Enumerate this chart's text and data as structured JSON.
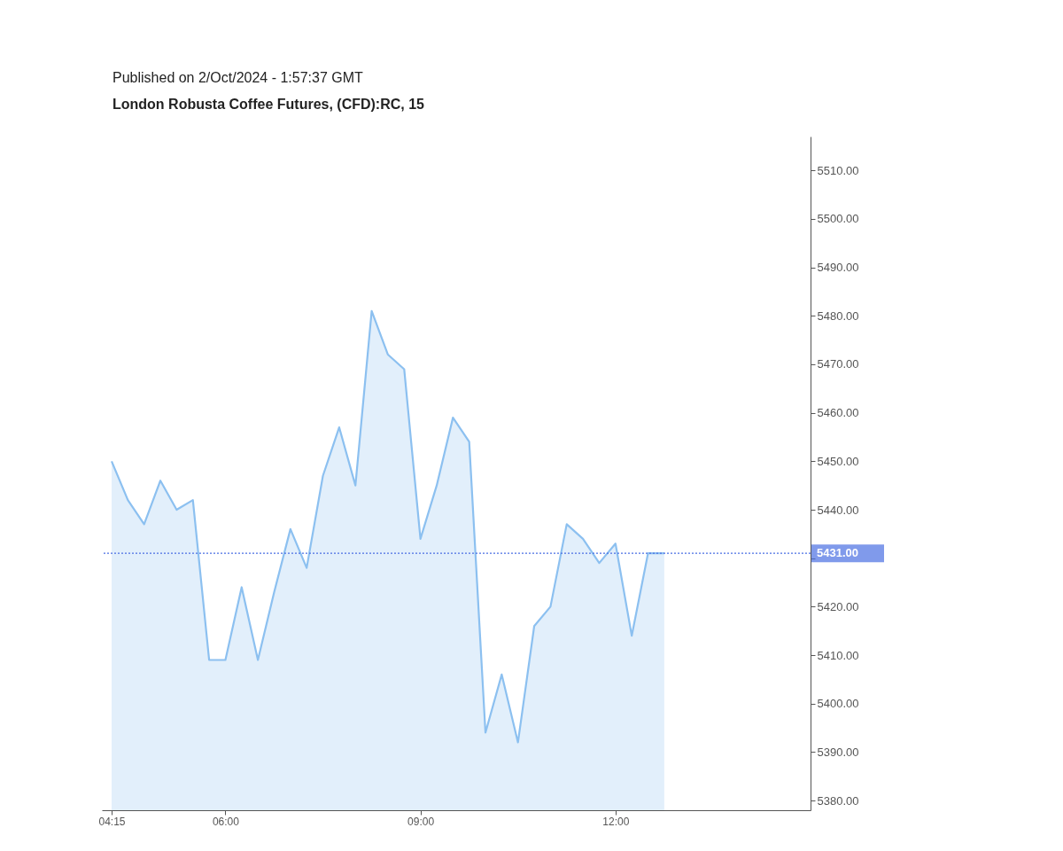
{
  "chart_data": {
    "type": "area",
    "title": "London Robusta Coffee Futures, (CFD):RC, 15",
    "annotations": [
      "Published on 2/Oct/2024 - 1:57:37 GMT"
    ],
    "x": [
      4.25,
      4.5,
      4.75,
      5,
      5.25,
      5.5,
      5.75,
      6,
      6.25,
      6.5,
      6.75,
      7,
      7.25,
      7.5,
      7.75,
      8,
      8.25,
      8.5,
      8.75,
      9,
      9.25,
      9.5,
      9.75,
      10,
      10.25,
      10.5,
      10.75,
      11,
      11.25,
      11.5,
      11.75,
      12,
      12.25,
      12.5,
      12.75
    ],
    "series": [
      {
        "color": "#8cc0f0",
        "values": [
          5450,
          5442,
          5437,
          5446,
          5440,
          5442,
          5409,
          5409,
          5424,
          5409,
          5423,
          5436,
          5428,
          5447,
          5457,
          5445,
          5481,
          5472,
          5469,
          5434,
          5445,
          5459,
          5454,
          5394,
          5406,
          5392,
          5416,
          5420,
          5437,
          5434,
          5429,
          5433,
          5414,
          5431,
          5431
        ]
      }
    ],
    "xlim": [
      4.1,
      15
    ],
    "xticks": [
      {
        "value": 4.25,
        "label": "04:15"
      },
      {
        "value": 6,
        "label": "06:00"
      },
      {
        "value": 9,
        "label": "09:00"
      },
      {
        "value": 12,
        "label": "12:00"
      }
    ],
    "ylim": [
      5378,
      5517
    ],
    "yticks": [
      {
        "value": 5380,
        "label": "5380.00"
      },
      {
        "value": 5390,
        "label": "5390.00"
      },
      {
        "value": 5400,
        "label": "5400.00"
      },
      {
        "value": 5410,
        "label": "5410.00"
      },
      {
        "value": 5420,
        "label": "5420.00"
      },
      {
        "value": 5430,
        "label": null
      },
      {
        "value": 5440,
        "label": "5440.00"
      },
      {
        "value": 5450,
        "label": "5450.00"
      },
      {
        "value": 5460,
        "label": "5460.00"
      },
      {
        "value": 5470,
        "label": "5470.00"
      },
      {
        "value": 5480,
        "label": "5480.00"
      },
      {
        "value": 5490,
        "label": "5490.00"
      },
      {
        "value": 5500,
        "label": "5500.00"
      },
      {
        "value": 5510,
        "label": "5510.00"
      }
    ],
    "ref_lines": [
      {
        "axis": "y",
        "value": 5431,
        "label": "5431.00",
        "color": "#4a6fe3",
        "line_style": "dotted"
      }
    ],
    "grid": false
  }
}
